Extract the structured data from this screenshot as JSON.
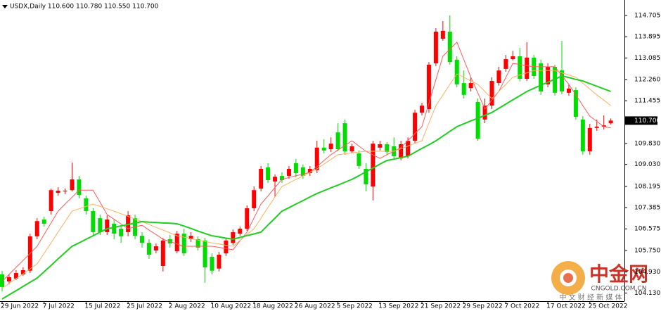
{
  "chart_data": {
    "type": "candlestick",
    "title": "USDX,Daily 110.600 110.780 110.550 110.700",
    "up_color": "#ff0000",
    "down_color": "#00dd00",
    "categories": [
      "29 Jun 2022",
      null,
      null,
      null,
      null,
      null,
      "7 Jul 2022",
      null,
      null,
      null,
      null,
      null,
      "15 Jul 2022",
      null,
      null,
      null,
      null,
      null,
      "25 Jul 2022",
      null,
      null,
      null,
      null,
      null,
      "2 Aug 2022",
      null,
      null,
      null,
      null,
      null,
      "10 Aug 2022",
      null,
      null,
      null,
      null,
      null,
      "18 Aug 2022",
      null,
      null,
      null,
      null,
      null,
      "26 Aug 2022",
      null,
      null,
      null,
      null,
      null,
      "5 Sep 2022",
      null,
      null,
      null,
      null,
      null,
      "13 Sep 2022",
      null,
      null,
      null,
      null,
      null,
      "21 Sep 2022",
      null,
      null,
      null,
      null,
      null,
      "29 Sep 2022",
      null,
      null,
      null,
      null,
      null,
      "7 Oct 2022",
      null,
      null,
      null,
      null,
      null,
      "17 Oct 2022",
      null,
      null,
      null,
      null,
      null,
      "25 Oct 2022",
      null,
      null,
      null
    ],
    "open": [
      104.84,
      104.57,
      104.68,
      104.84,
      104.98,
      106.29,
      106.93,
      107.25,
      107.95,
      108.0,
      108.05,
      108.46,
      107.74,
      107.25,
      106.98,
      106.45,
      106.77,
      106.58,
      106.45,
      106.98,
      106.31,
      106.04,
      105.75,
      105.16,
      106.18,
      105.72,
      106.39,
      106.18,
      106.18,
      106.13,
      105.51,
      105.06,
      105.64,
      106.04,
      106.39,
      106.58,
      107.36,
      108.11,
      108.92,
      108.38,
      108.59,
      108.59,
      109.08,
      108.92,
      108.7,
      108.81,
      109.67,
      109.61,
      110.25,
      110.6,
      109.53,
      109.45,
      108.86,
      108.19,
      109.67,
      109.8,
      109.72,
      109.26,
      109.34,
      109.93,
      111.0,
      111.14,
      112.88,
      113.82,
      114.09,
      113.02,
      112.13,
      111.94,
      111.41,
      110.74,
      111.27,
      112.13,
      112.67,
      113.04,
      113.15,
      112.29,
      113.1,
      112.88,
      112.08,
      112.75,
      112.61,
      111.76,
      111.86,
      110.74,
      109.53,
      110.42,
      110.47,
      110.6
    ],
    "high": [
      104.98,
      104.84,
      105.0,
      105.11,
      106.39,
      106.98,
      107.04,
      108.11,
      108.16,
      108.11,
      109.1,
      108.59,
      107.84,
      107.36,
      107.12,
      107.09,
      106.93,
      106.71,
      107.25,
      107.12,
      106.45,
      106.18,
      106.02,
      106.23,
      106.34,
      106.5,
      106.58,
      106.45,
      106.29,
      106.23,
      105.64,
      105.7,
      106.23,
      106.55,
      106.66,
      107.47,
      108.19,
      108.97,
      109.08,
      108.65,
      108.73,
      108.97,
      109.24,
      109.03,
      108.97,
      109.93,
      109.99,
      110.06,
      110.6,
      110.74,
      109.82,
      109.56,
      109.08,
      109.93,
      109.93,
      109.88,
      110.06,
      109.93,
      110.06,
      111.11,
      111.38,
      112.93,
      114.22,
      114.49,
      114.71,
      113.15,
      112.61,
      112.35,
      111.54,
      111.54,
      112.35,
      112.75,
      113.2,
      113.36,
      113.47,
      113.69,
      113.2,
      113.02,
      112.88,
      112.83,
      113.74,
      112.08,
      111.97,
      110.87,
      110.58,
      110.74,
      110.9,
      110.78
    ],
    "low": [
      104.19,
      104.46,
      104.62,
      104.78,
      104.89,
      106.18,
      106.66,
      107.12,
      107.84,
      107.9,
      108.0,
      107.74,
      107.12,
      106.34,
      106.34,
      106.34,
      106.18,
      106.04,
      106.29,
      106.18,
      105.86,
      105.43,
      105.64,
      104.95,
      105.86,
      105.64,
      105.54,
      106.07,
      105.75,
      104.52,
      104.84,
      104.95,
      105.54,
      105.96,
      106.31,
      106.5,
      107.25,
      108.0,
      108.32,
      107.79,
      108.32,
      108.48,
      108.54,
      108.48,
      108.59,
      108.7,
      109.45,
      109.5,
      109.53,
      109.4,
      109.45,
      108.86,
      108.0,
      107.66,
      109.56,
      109.4,
      109.24,
      109.18,
      109.26,
      109.82,
      110.9,
      111.0,
      112.77,
      113.74,
      112.83,
      111.97,
      111.54,
      111.81,
      109.93,
      110.6,
      111.14,
      112.03,
      112.56,
      112.99,
      112.19,
      112.21,
      112.29,
      111.68,
      111.97,
      111.65,
      111.7,
      111.65,
      110.74,
      109.4,
      109.4,
      110.31,
      110.36,
      110.55
    ],
    "close": [
      104.36,
      104.73,
      104.89,
      105.0,
      106.29,
      106.87,
      106.77,
      108.05,
      108.03,
      108.03,
      108.46,
      107.87,
      107.25,
      106.45,
      106.45,
      106.93,
      106.39,
      106.29,
      107.09,
      106.31,
      106.04,
      105.59,
      105.91,
      106.13,
      106.02,
      106.39,
      105.64,
      106.31,
      105.86,
      105.11,
      104.98,
      105.59,
      106.13,
      106.45,
      106.58,
      107.36,
      108.05,
      108.86,
      108.43,
      108.56,
      108.43,
      108.86,
      108.7,
      108.59,
      108.86,
      109.67,
      109.56,
      109.82,
      109.61,
      109.53,
      109.72,
      108.97,
      108.27,
      109.82,
      109.8,
      109.5,
      109.34,
      109.8,
      109.93,
      111.0,
      111.27,
      112.83,
      114.09,
      114.12,
      112.93,
      112.08,
      111.68,
      112.13,
      110.01,
      111.27,
      112.21,
      112.61,
      113.04,
      113.15,
      112.29,
      113.1,
      112.4,
      111.81,
      112.75,
      111.76,
      111.81,
      111.92,
      110.84,
      109.53,
      110.42,
      110.47,
      110.52,
      110.7
    ],
    "lines": [
      {
        "color": "#ff5a5a",
        "width": 1,
        "values": [
          104.57,
          104.84,
          105.11,
          105.37,
          105.64,
          105.91,
          106.36,
          106.8,
          107.25,
          107.52,
          107.78,
          108.05,
          108.05,
          108.05,
          107.59,
          107.12,
          106.94,
          106.76,
          106.58,
          106.65,
          106.71,
          106.53,
          106.36,
          106.18,
          106.09,
          106.0,
          105.91,
          105.91,
          105.91,
          105.91,
          105.91,
          105.87,
          105.82,
          105.78,
          106.12,
          106.45,
          106.99,
          107.52,
          107.83,
          108.15,
          108.46,
          108.53,
          108.6,
          108.66,
          108.73,
          108.95,
          109.18,
          109.4,
          109.58,
          109.75,
          109.93,
          109.73,
          109.53,
          109.4,
          109.26,
          109.4,
          109.53,
          109.67,
          109.94,
          110.2,
          110.47,
          111.36,
          112.26,
          113.15,
          113.42,
          113.69,
          113.02,
          112.35,
          111.75,
          111.14,
          111.48,
          111.81,
          112.35,
          112.88,
          112.84,
          112.79,
          112.75,
          112.75,
          112.75,
          112.75,
          112.42,
          112.08,
          111.68,
          111.27,
          110.87,
          110.67,
          110.47,
          110.42
        ]
      },
      {
        "color": "#ffb060",
        "width": 1,
        "values": [
          104.3,
          104.49,
          104.68,
          104.86,
          105.05,
          105.24,
          105.64,
          106.04,
          106.45,
          106.85,
          107.25,
          107.34,
          107.43,
          107.52,
          107.43,
          107.34,
          107.25,
          107.15,
          107.05,
          106.95,
          106.85,
          106.74,
          106.63,
          106.53,
          106.42,
          106.31,
          106.26,
          106.2,
          106.15,
          106.09,
          106.04,
          106.0,
          105.95,
          105.91,
          106.13,
          106.36,
          106.58,
          106.98,
          107.39,
          107.79,
          108.19,
          108.32,
          108.46,
          108.59,
          108.73,
          108.86,
          109.04,
          109.22,
          109.4,
          109.43,
          109.47,
          109.5,
          109.53,
          109.53,
          109.53,
          109.53,
          109.53,
          109.63,
          109.73,
          109.83,
          109.93,
          110.6,
          111.27,
          111.67,
          112.08,
          112.48,
          112.35,
          112.21,
          112.08,
          111.81,
          111.54,
          111.81,
          112.08,
          112.35,
          112.44,
          112.52,
          112.61,
          112.61,
          112.61,
          112.61,
          112.52,
          112.44,
          112.35,
          112.13,
          111.9,
          111.68,
          111.48,
          111.27
        ]
      },
      {
        "color": "#22cc22",
        "width": 2,
        "values": [
          103.9,
          104.06,
          104.22,
          104.38,
          104.54,
          104.7,
          104.94,
          105.18,
          105.43,
          105.67,
          105.91,
          106.04,
          106.18,
          106.31,
          106.45,
          106.58,
          106.63,
          106.69,
          106.74,
          106.8,
          106.85,
          106.83,
          106.82,
          106.8,
          106.79,
          106.77,
          106.68,
          106.59,
          106.49,
          106.4,
          106.31,
          106.27,
          106.22,
          106.18,
          106.25,
          106.32,
          106.38,
          106.45,
          106.72,
          106.98,
          107.25,
          107.38,
          107.52,
          107.65,
          107.79,
          107.92,
          108.03,
          108.14,
          108.24,
          108.35,
          108.46,
          108.6,
          108.75,
          108.89,
          109.04,
          109.18,
          109.23,
          109.29,
          109.34,
          109.49,
          109.64,
          109.78,
          109.93,
          110.11,
          110.29,
          110.47,
          110.58,
          110.69,
          110.79,
          110.9,
          111.01,
          111.17,
          111.33,
          111.49,
          111.65,
          111.81,
          111.93,
          112.05,
          112.16,
          112.28,
          112.4,
          112.34,
          112.27,
          112.21,
          112.11,
          112.01,
          111.91,
          111.81
        ]
      }
    ],
    "ylim": [
      103.82,
      115.295
    ],
    "yticks": [
      114.705,
      113.895,
      113.085,
      {
        "value": 112.26,
        "label": "112.260"
      },
      111.455,
      {
        "value": 109.83,
        "label": "109.830"
      },
      {
        "value": 109.03,
        "label": "109.030"
      },
      108.195,
      107.385,
      106.575,
      {
        "value": 105.75,
        "label": "105.750"
      },
      {
        "value": 104.93,
        "label": "104.930"
      },
      {
        "value": 104.13,
        "label": "104.130"
      }
    ],
    "last_price": {
      "value": 110.7,
      "label": "110.700"
    },
    "watermark": {
      "name": "中金网",
      "site": "CNGOLD.COM.CN",
      "slogan": "中 文 财 经 新 媒 体"
    }
  }
}
